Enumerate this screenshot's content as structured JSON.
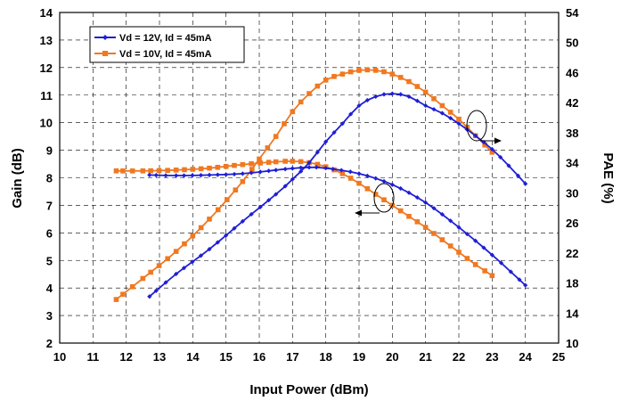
{
  "chart_data": {
    "type": "line",
    "xlabel": "Input Power (dBm)",
    "ylabel_left": "Gain (dB)",
    "ylabel_right": "PAE (%)",
    "xlim": [
      10,
      25
    ],
    "ylim_left": [
      2,
      14
    ],
    "ylim_right": [
      10,
      54
    ],
    "x_ticks": [
      "10",
      "11",
      "12",
      "13",
      "14",
      "15",
      "16",
      "17",
      "18",
      "19",
      "20",
      "21",
      "22",
      "23",
      "24",
      "25"
    ],
    "y_left_ticks": [
      "2",
      "3",
      "4",
      "5",
      "6",
      "7",
      "8",
      "9",
      "10",
      "11",
      "12",
      "13",
      "14"
    ],
    "y_right_ticks": [
      "10",
      "14",
      "18",
      "22",
      "26",
      "30",
      "34",
      "38",
      "42",
      "46",
      "50",
      "54"
    ],
    "grid": true,
    "legend_position": "top-left",
    "series": [
      {
        "name": "Vd = 12V, Id = 45mA",
        "color": "#1f1fd6",
        "marker": "diamond",
        "gain": {
          "x": [
            12.7,
            13.5,
            14.5,
            15.5,
            16.5,
            17.0,
            17.5,
            18.0,
            19.0,
            20.0,
            21.0,
            22.0,
            23.0,
            24.0
          ],
          "y": [
            8.1,
            8.08,
            8.1,
            8.15,
            8.28,
            8.34,
            8.38,
            8.35,
            8.15,
            7.75,
            7.1,
            6.2,
            5.2,
            4.1
          ]
        },
        "pae": {
          "x": [
            12.7,
            13.5,
            14.5,
            15.5,
            16.5,
            17.0,
            17.5,
            18.0,
            18.5,
            19.0,
            19.5,
            20.0,
            20.5,
            21.0,
            21.5,
            22.0,
            22.5,
            23.0,
            23.5,
            24.0
          ],
          "y": [
            16.2,
            19.2,
            22.5,
            26.2,
            29.8,
            31.8,
            34.0,
            36.8,
            39.2,
            41.6,
            42.8,
            43.2,
            42.8,
            41.6,
            40.6,
            39.2,
            37.6,
            35.8,
            33.6,
            31.2
          ]
        }
      },
      {
        "name": "Vd = 10V, Id = 45mA",
        "color": "#f07820",
        "marker": "square",
        "gain": {
          "x": [
            11.7,
            12.5,
            13.5,
            14.5,
            15.5,
            16.5,
            17.0,
            17.5,
            18.0,
            18.5,
            19.0,
            19.5,
            20.0,
            20.5,
            21.0,
            21.5,
            22.0,
            22.5,
            23.0
          ],
          "y": [
            8.25,
            8.25,
            8.28,
            8.35,
            8.48,
            8.58,
            8.6,
            8.55,
            8.4,
            8.15,
            7.8,
            7.4,
            7.0,
            6.6,
            6.2,
            5.75,
            5.3,
            4.85,
            4.45
          ]
        },
        "pae": {
          "x": [
            11.7,
            12.5,
            13.5,
            14.5,
            15.5,
            16.0,
            16.5,
            17.0,
            17.5,
            18.0,
            18.5,
            19.0,
            19.5,
            20.0,
            20.5,
            21.0,
            21.5,
            22.0,
            22.5,
            23.0
          ],
          "y": [
            15.8,
            18.6,
            22.2,
            26.5,
            31.5,
            34.5,
            37.5,
            40.8,
            43.2,
            45.0,
            45.8,
            46.3,
            46.3,
            45.8,
            44.8,
            43.4,
            41.6,
            39.8,
            37.6,
            35.4
          ]
        }
      }
    ]
  }
}
